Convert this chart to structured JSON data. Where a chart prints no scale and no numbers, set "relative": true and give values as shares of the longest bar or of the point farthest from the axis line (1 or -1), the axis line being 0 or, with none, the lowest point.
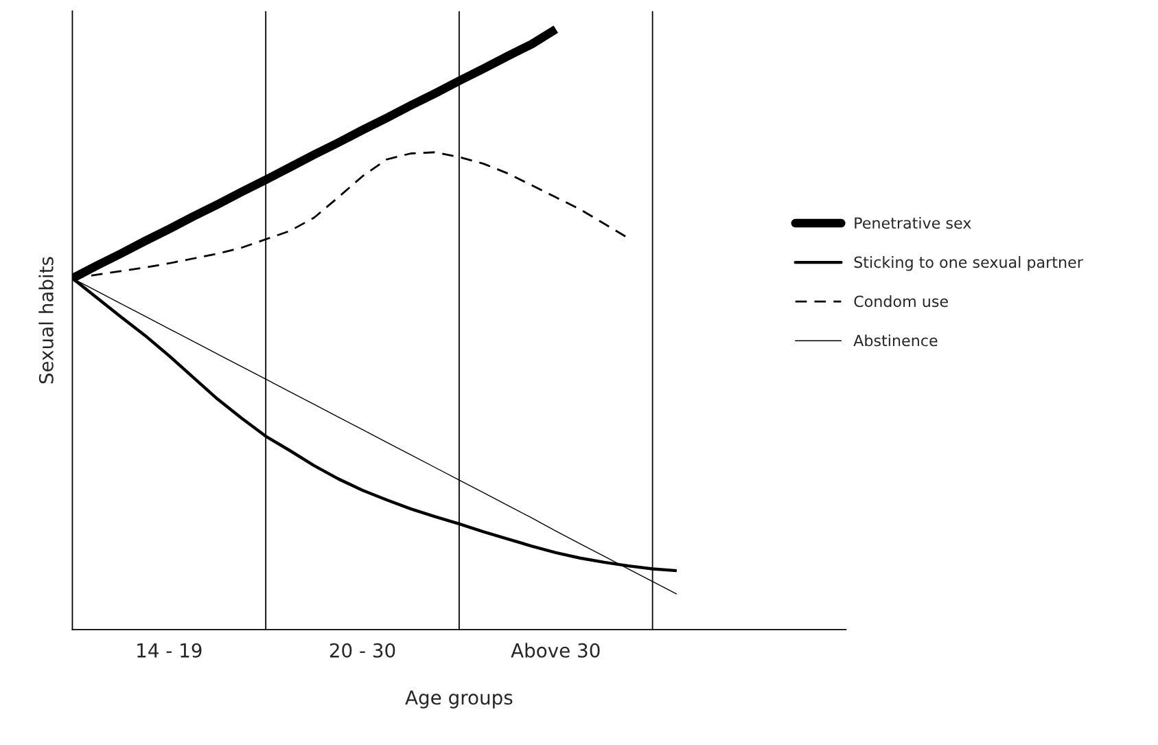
{
  "chart_data": {
    "type": "line",
    "relative": true,
    "xlabel": "Age groups",
    "ylabel": "Sexual habits",
    "categories": [
      null,
      null,
      null,
      null,
      "14 - 19",
      null,
      null,
      null,
      null,
      null,
      null,
      null,
      "20 - 30",
      null,
      null,
      null,
      null,
      null,
      null,
      null,
      "Above 30",
      null,
      null,
      null,
      null,
      null,
      null,
      null,
      null,
      null,
      null,
      null,
      null
    ],
    "legend": "right",
    "grid": "x",
    "marker": "none",
    "series": [
      {
        "name": "Penetrative sex",
        "color": "#000000",
        "line_style": "solid",
        "values": [
          0.585,
          0.606,
          0.626,
          0.647,
          0.667,
          0.688,
          0.708,
          0.729,
          0.749,
          0.77,
          0.791,
          0.811,
          0.832,
          0.852,
          0.873,
          0.893,
          0.914,
          0.934,
          0.955,
          0.975,
          1.0,
          null,
          null,
          null,
          null,
          null,
          null,
          null,
          null,
          null,
          null,
          null,
          null
        ]
      },
      {
        "name": "Sticking to one sexual partner",
        "color": "#000000",
        "line_style": "solid",
        "values": [
          0.585,
          0.553,
          0.521,
          0.49,
          0.456,
          0.42,
          0.384,
          0.352,
          0.322,
          0.298,
          0.273,
          0.251,
          0.232,
          0.216,
          0.201,
          0.188,
          0.176,
          0.163,
          0.151,
          0.139,
          0.128,
          0.119,
          0.112,
          0.106,
          0.101,
          0.098,
          null,
          null,
          null,
          null,
          null,
          null,
          null
        ]
      },
      {
        "name": "Condom use",
        "color": "#000000",
        "line_style": "dashed",
        "values": [
          0.585,
          0.591,
          0.597,
          0.603,
          0.61,
          0.618,
          0.626,
          0.636,
          0.65,
          0.664,
          0.686,
          0.72,
          0.755,
          0.783,
          0.793,
          0.795,
          0.787,
          0.776,
          0.76,
          0.74,
          0.72,
          0.7,
          0.676,
          0.652,
          null,
          null,
          null,
          null,
          null,
          null,
          null,
          null,
          null
        ]
      },
      {
        "name": "Abstinence",
        "color": "#000000",
        "line_style": "solid",
        "values": [
          0.585,
          0.564,
          0.543,
          0.522,
          0.501,
          0.48,
          0.459,
          0.438,
          0.417,
          0.396,
          0.375,
          0.354,
          0.333,
          0.312,
          0.291,
          0.27,
          0.249,
          0.228,
          0.207,
          0.186,
          0.164,
          0.143,
          0.122,
          0.101,
          0.08,
          0.059,
          null,
          null,
          null,
          null,
          null,
          null,
          null
        ]
      }
    ]
  }
}
